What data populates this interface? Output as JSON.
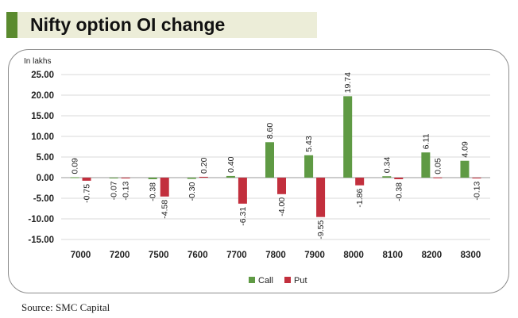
{
  "title": "Nifty option OI change",
  "source": "Source: SMC Capital",
  "chart_data": {
    "type": "bar",
    "unit_label": "In lakhs",
    "categories": [
      "7000",
      "7200",
      "7500",
      "7600",
      "7700",
      "7800",
      "7900",
      "8000",
      "8100",
      "8200",
      "8300"
    ],
    "series": [
      {
        "name": "Call",
        "color": "#5f9a44",
        "values": [
          0.09,
          -0.07,
          -0.38,
          -0.3,
          0.4,
          8.6,
          5.43,
          19.74,
          0.34,
          6.11,
          4.09
        ],
        "labels": [
          "0.09",
          "-0.07",
          "-0.38",
          "-0.30",
          "0.40",
          "8.60",
          "5.43",
          "19.74",
          "0.34",
          "6.11",
          "4.09"
        ]
      },
      {
        "name": "Put",
        "color": "#c22f3d",
        "values": [
          -0.75,
          -0.13,
          -4.58,
          0.2,
          -6.31,
          -4.0,
          -9.55,
          -1.86,
          -0.38,
          0.05,
          -0.13
        ],
        "labels": [
          "-0.75",
          "-0.13",
          "-4.58",
          "0.20",
          "-6.31",
          "-4.00",
          "-9.55",
          "-1.86",
          "-0.38",
          "0.05",
          "-0.13"
        ]
      }
    ],
    "ylim": [
      -15,
      25
    ],
    "yticks": [
      25,
      20,
      15,
      10,
      5,
      0,
      -5,
      -10,
      -15
    ],
    "ytick_labels": [
      "25.00",
      "20.00",
      "15.00",
      "10.00",
      "5.00",
      "0.00",
      "-5.00",
      "-10.00",
      "-15.00"
    ],
    "grid": true,
    "legend": "bottom"
  }
}
